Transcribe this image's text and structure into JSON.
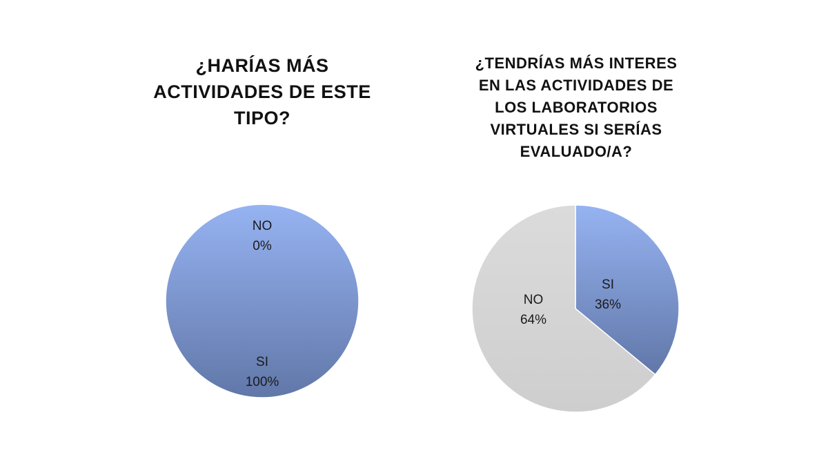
{
  "chart_data": [
    {
      "type": "pie",
      "title": "¿HARÍAS MÁS ACTIVIDADES DE ESTE TIPO?",
      "title_lines": [
        "¿HARÍAS MÁS",
        "ACTIVIDADES DE ESTE",
        "TIPO?"
      ],
      "slices": [
        {
          "name": "NO",
          "value": 0,
          "label": "0%",
          "color": "#9cb8f4"
        },
        {
          "name": "SI",
          "value": 100,
          "label": "100%",
          "color": "#8aaaf0"
        }
      ]
    },
    {
      "type": "pie",
      "title": "¿TENDRÍAS MÁS INTERES EN LAS ACTIVIDADES DE LOS LABORATORIOS VIRTUALES SI SERÍAS EVALUADO/A?",
      "title_lines": [
        "¿TENDRÍAS MÁS INTERES",
        "EN LAS ACTIVIDADES DE",
        "LOS LABORATORIOS",
        "VIRTUALES SI SERÍAS",
        "EVALUADO/A?"
      ],
      "slices": [
        {
          "name": "SI",
          "value": 36,
          "label": "36%",
          "color": "#8aaaf0"
        },
        {
          "name": "NO",
          "value": 64,
          "label": "64%",
          "color": "#d9d9d9"
        }
      ]
    }
  ]
}
